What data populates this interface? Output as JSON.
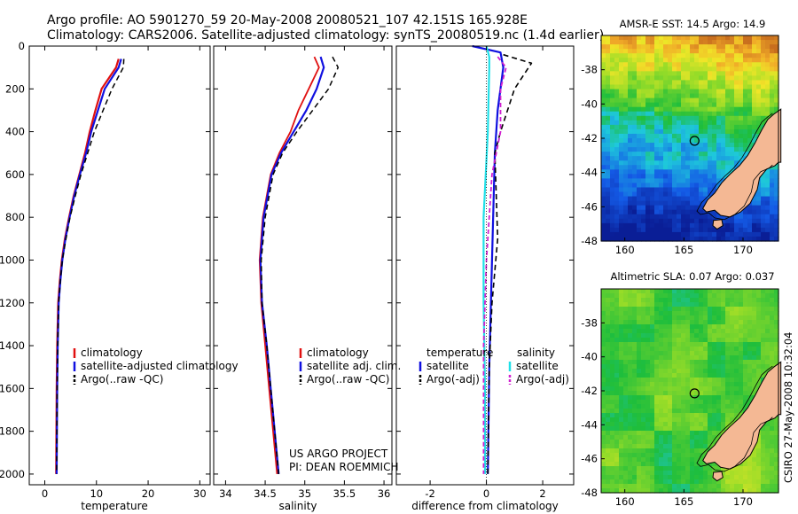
{
  "header": {
    "line1": "Argo profile: AO 5901270_59 20-May-2008 20080521_107 42.151S 165.928E",
    "line2": "Climatology: CARS2006. Satellite-adjusted climatology: synTS_20080519.nc (1.4d earlier)"
  },
  "colors": {
    "climatology": "#e01010",
    "satellite": "#1010e0",
    "argo": "#000000",
    "sat_salinity": "#20e0e8",
    "argo_salinity": "#d020d0",
    "land": "#f4b894"
  },
  "chart_data": [
    {
      "type": "line",
      "name": "temperature-profile",
      "xlabel": "temperature",
      "ylabel": "",
      "xlim": [
        -3,
        32
      ],
      "ylim": [
        2050,
        0
      ],
      "xticks": [
        "0",
        "10",
        "20",
        "30"
      ],
      "yticks": [
        "0",
        "200",
        "400",
        "600",
        "800",
        "1000",
        "1200",
        "1400",
        "1600",
        "1800",
        "2000"
      ],
      "legend": [
        "climatology",
        "satellite-adjusted climatology",
        "Argo(..raw -QC)"
      ],
      "series": [
        {
          "name": "climatology",
          "x": [
            14.3,
            13.8,
            11.0,
            9.8,
            8.7,
            7.8,
            6.7,
            5.6,
            4.7,
            3.9,
            3.3,
            2.9,
            2.6,
            2.4,
            2.3,
            2.2
          ],
          "y": [
            60,
            100,
            200,
            300,
            400,
            500,
            600,
            700,
            800,
            900,
            1000,
            1100,
            1200,
            1400,
            1600,
            2000
          ]
        },
        {
          "name": "satellite",
          "x": [
            14.8,
            14.3,
            11.6,
            10.3,
            9.0,
            8.0,
            6.8,
            5.7,
            4.8,
            4.0,
            3.4,
            3.0,
            2.7,
            2.5,
            2.4,
            2.3
          ],
          "y": [
            60,
            100,
            200,
            300,
            400,
            500,
            600,
            700,
            800,
            900,
            1000,
            1100,
            1200,
            1400,
            1600,
            2000
          ]
        },
        {
          "name": "argo",
          "x": [
            15.3,
            15.2,
            13.0,
            11.3,
            9.6,
            8.3,
            7.0,
            5.9,
            4.9,
            4.1,
            3.4,
            3.0,
            2.7,
            2.5,
            2.4,
            2.3
          ],
          "y": [
            60,
            100,
            200,
            300,
            400,
            500,
            600,
            700,
            800,
            900,
            1000,
            1100,
            1200,
            1400,
            1600,
            2000
          ]
        }
      ]
    },
    {
      "type": "line",
      "name": "salinity-profile",
      "xlabel": "salinity",
      "ylabel": "",
      "xlim": [
        33.85,
        36.1
      ],
      "ylim": [
        2050,
        0
      ],
      "xticks": [
        "34",
        "34.5",
        "35",
        "35.5",
        "36"
      ],
      "yticks": [],
      "legend": [
        "climatology",
        "satellite adj. clim.",
        "Argo(..raw -QC)"
      ],
      "annotation": [
        "US ARGO PROJECT",
        "PI: DEAN ROEMMICH"
      ],
      "series": [
        {
          "name": "climatology",
          "x": [
            35.12,
            35.18,
            35.05,
            34.92,
            34.82,
            34.68,
            34.57,
            34.47,
            34.43,
            34.45,
            34.5,
            34.55,
            34.6,
            34.65
          ],
          "y": [
            50,
            100,
            200,
            300,
            400,
            500,
            600,
            800,
            1000,
            1200,
            1400,
            1600,
            1800,
            2000
          ]
        },
        {
          "name": "satellite",
          "x": [
            35.2,
            35.24,
            35.15,
            35.02,
            34.86,
            34.7,
            34.58,
            34.48,
            34.44,
            34.46,
            34.52,
            34.57,
            34.62,
            34.67
          ],
          "y": [
            50,
            100,
            200,
            300,
            400,
            500,
            600,
            800,
            1000,
            1200,
            1400,
            1600,
            1800,
            2000
          ]
        },
        {
          "name": "argo",
          "x": [
            35.35,
            35.42,
            35.3,
            35.1,
            34.9,
            34.72,
            34.6,
            34.5,
            34.45,
            34.46,
            34.52,
            34.57,
            34.62,
            34.67
          ],
          "y": [
            50,
            100,
            200,
            300,
            400,
            500,
            600,
            800,
            1000,
            1200,
            1400,
            1600,
            1800,
            2000
          ]
        }
      ]
    },
    {
      "type": "line",
      "name": "difference-profile",
      "xlabel": "difference from climatology",
      "ylabel": "",
      "xlim": [
        -3.2,
        3.1
      ],
      "ylim": [
        2050,
        0
      ],
      "xticks": [
        "-2",
        "0",
        "2"
      ],
      "yticks": [],
      "legend_title_left": "temperature",
      "legend_title_right": "salinity",
      "legend": [
        "satellite",
        "Argo(-adj)",
        "satellite",
        "Argo(-adj)"
      ],
      "series": [
        {
          "name": "temperature satellite",
          "x": [
            -0.5,
            0.5,
            0.6,
            0.4,
            0.3,
            0.2,
            0.1,
            0.05
          ],
          "y": [
            0,
            30,
            100,
            300,
            500,
            1000,
            1500,
            2000
          ]
        },
        {
          "name": "temperature Argo(-adj)",
          "x": [
            0.6,
            1.6,
            1.0,
            0.5,
            0.3,
            0.4,
            0.2,
            0.1,
            0.05
          ],
          "y": [
            40,
            80,
            200,
            400,
            500,
            900,
            1200,
            1500,
            2000
          ]
        },
        {
          "name": "salinity satellite",
          "x": [
            0.0,
            0.1,
            0.1,
            0.05,
            -0.1,
            -0.1,
            -0.05,
            -0.05
          ],
          "y": [
            0,
            50,
            100,
            400,
            800,
            1200,
            1600,
            2000
          ]
        },
        {
          "name": "salinity Argo(-adj)",
          "x": [
            0.4,
            0.7,
            0.5,
            0.5,
            0.2,
            0.0,
            -0.1,
            -0.1
          ],
          "y": [
            50,
            100,
            200,
            400,
            600,
            1000,
            1400,
            2000
          ]
        }
      ]
    },
    {
      "type": "heatmap",
      "name": "sst-map",
      "title": "AMSR-E SST: 14.5 Argo: 14.9",
      "xlim": [
        158,
        173
      ],
      "ylim": [
        -48,
        -36
      ],
      "xticks": [
        "160",
        "165",
        "170"
      ],
      "yticks": [
        "-38",
        "-40",
        "-42",
        "-44",
        "-46",
        "-48"
      ],
      "marker": {
        "lon": 165.9,
        "lat": -42.15
      }
    },
    {
      "type": "heatmap",
      "name": "sla-map",
      "title": "Altimetric SLA: 0.07 Argo: 0.037",
      "xlim": [
        158,
        173
      ],
      "ylim": [
        -48,
        -36
      ],
      "xticks": [
        "160",
        "165",
        "170"
      ],
      "yticks": [
        "-38",
        "-40",
        "-42",
        "-44",
        "-46",
        "-48"
      ],
      "marker": {
        "lon": 165.9,
        "lat": -42.15
      }
    }
  ],
  "footer": {
    "stamp": "CSIRO 27-May-2008 10:32:04"
  }
}
